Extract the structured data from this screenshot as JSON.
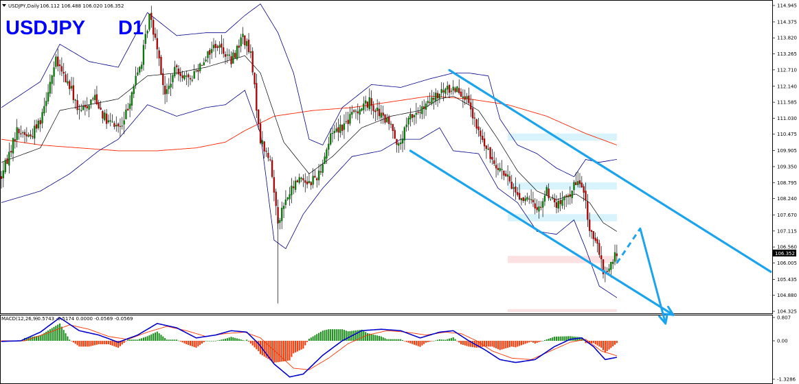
{
  "header": {
    "symbol_line": "USDJPY,Daily",
    "ohlc": "106.112 106.488 106.020 106.352",
    "title_symbol": "USDJPY",
    "title_tf": "D1"
  },
  "macd_header": {
    "label": "MACD(12,26,9)",
    "values": "-0.5743 -0.5174 0.0000 -0.0569 -0.0569"
  },
  "current_price": "106.352",
  "colors": {
    "title": "#0000ff",
    "candle_up": "#008000",
    "candle_down": "#c00000",
    "bollinger": "#00008b",
    "sma_mid": "#000000",
    "ma200": "#ff2200",
    "channel": "#1aa3ef",
    "zone_resistance": "#d8f3fc",
    "zone_support": "#fbe1e1",
    "macd_hist_pos": "#1a8c1a",
    "macd_hist_neg": "#ff3300",
    "macd_line": "#0000cc",
    "signal_line": "#ff3300"
  },
  "chart_data": [
    {
      "type": "candlestick",
      "title": "",
      "x_unit": "daily bars (oldest to newest)",
      "ylim": [
        104.325,
        114.945
      ],
      "yticks": [
        "114.945",
        "114.375",
        "113.820",
        "113.265",
        "112.710",
        "112.140",
        "111.585",
        "111.030",
        "110.475",
        "109.905",
        "109.350",
        "108.795",
        "108.240",
        "107.670",
        "107.115",
        "106.560",
        "106.005",
        "105.435",
        "104.880",
        "104.325"
      ],
      "anchors": [
        [
          0,
          109.0
        ],
        [
          8,
          110.6
        ],
        [
          15,
          110.4
        ],
        [
          20,
          111.0
        ],
        [
          25,
          112.3
        ],
        [
          28,
          113.0
        ],
        [
          36,
          112.0
        ],
        [
          40,
          111.2
        ],
        [
          48,
          111.8
        ],
        [
          54,
          110.9
        ],
        [
          62,
          110.7
        ],
        [
          68,
          112.2
        ],
        [
          72,
          113.0
        ],
        [
          76,
          114.6
        ],
        [
          80,
          113.6
        ],
        [
          84,
          111.8
        ],
        [
          90,
          112.8
        ],
        [
          96,
          112.3
        ],
        [
          104,
          113.1
        ],
        [
          110,
          113.6
        ],
        [
          114,
          113.4
        ],
        [
          118,
          113.0
        ],
        [
          124,
          113.9
        ],
        [
          128,
          113.2
        ],
        [
          133,
          110.3
        ],
        [
          138,
          109.5
        ],
        [
          142,
          107.5
        ],
        [
          147,
          108.3
        ],
        [
          153,
          109.0
        ],
        [
          158,
          108.8
        ],
        [
          163,
          109.1
        ],
        [
          170,
          110.6
        ],
        [
          176,
          110.8
        ],
        [
          182,
          111.3
        ],
        [
          189,
          111.6
        ],
        [
          195,
          111.1
        ],
        [
          201,
          110.7
        ],
        [
          204,
          110.0
        ],
        [
          210,
          111.1
        ],
        [
          216,
          111.3
        ],
        [
          222,
          111.7
        ],
        [
          228,
          112.0
        ],
        [
          234,
          112.1
        ],
        [
          238,
          111.8
        ],
        [
          244,
          110.7
        ],
        [
          250,
          109.8
        ],
        [
          256,
          109.3
        ],
        [
          262,
          108.7
        ],
        [
          266,
          108.3
        ],
        [
          272,
          108.1
        ],
        [
          276,
          107.9
        ],
        [
          280,
          108.5
        ],
        [
          285,
          108.0
        ],
        [
          290,
          108.2
        ],
        [
          294,
          108.7
        ],
        [
          298,
          108.8
        ],
        [
          302,
          107.2
        ],
        [
          305,
          106.8
        ],
        [
          309,
          105.7
        ],
        [
          312,
          105.8
        ],
        [
          316,
          106.352
        ]
      ],
      "bollinger_upper_anchors": [
        [
          0,
          111.4
        ],
        [
          20,
          112.3
        ],
        [
          30,
          113.6
        ],
        [
          45,
          113.0
        ],
        [
          60,
          112.8
        ],
        [
          75,
          114.7
        ],
        [
          90,
          113.9
        ],
        [
          105,
          114.0
        ],
        [
          115,
          114.0
        ],
        [
          125,
          114.6
        ],
        [
          133,
          115.0
        ],
        [
          142,
          114.0
        ],
        [
          150,
          112.6
        ],
        [
          158,
          110.3
        ],
        [
          165,
          110.1
        ],
        [
          175,
          111.4
        ],
        [
          190,
          112.2
        ],
        [
          205,
          112.1
        ],
        [
          220,
          112.4
        ],
        [
          232,
          112.6
        ],
        [
          240,
          112.6
        ],
        [
          250,
          112.5
        ],
        [
          256,
          111.0
        ],
        [
          265,
          110.1
        ],
        [
          275,
          109.8
        ],
        [
          285,
          109.3
        ],
        [
          294,
          109.0
        ],
        [
          300,
          109.6
        ],
        [
          307,
          109.5
        ],
        [
          316,
          109.6
        ]
      ],
      "bollinger_lower_anchors": [
        [
          0,
          108.1
        ],
        [
          20,
          108.5
        ],
        [
          35,
          109.1
        ],
        [
          50,
          109.9
        ],
        [
          60,
          110.3
        ],
        [
          75,
          111.5
        ],
        [
          90,
          111.1
        ],
        [
          105,
          111.4
        ],
        [
          115,
          111.5
        ],
        [
          125,
          112.0
        ],
        [
          133,
          110.5
        ],
        [
          140,
          106.8
        ],
        [
          146,
          106.5
        ],
        [
          155,
          107.7
        ],
        [
          165,
          108.6
        ],
        [
          180,
          109.7
        ],
        [
          195,
          109.9
        ],
        [
          205,
          110.3
        ],
        [
          215,
          110.3
        ],
        [
          225,
          110.7
        ],
        [
          232,
          109.9
        ],
        [
          245,
          109.8
        ],
        [
          255,
          108.6
        ],
        [
          265,
          108.1
        ],
        [
          275,
          107.1
        ],
        [
          285,
          107.0
        ],
        [
          294,
          107.5
        ],
        [
          300,
          106.5
        ],
        [
          307,
          105.2
        ],
        [
          316,
          104.8
        ]
      ],
      "sma20_anchors": [
        [
          0,
          109.5
        ],
        [
          20,
          110.0
        ],
        [
          30,
          111.3
        ],
        [
          45,
          111.5
        ],
        [
          60,
          111.7
        ],
        [
          75,
          112.5
        ],
        [
          90,
          112.6
        ],
        [
          105,
          112.8
        ],
        [
          115,
          113.0
        ],
        [
          125,
          113.2
        ],
        [
          133,
          112.6
        ],
        [
          145,
          110.2
        ],
        [
          158,
          109.1
        ],
        [
          170,
          109.7
        ],
        [
          185,
          110.7
        ],
        [
          200,
          111.1
        ],
        [
          215,
          111.3
        ],
        [
          225,
          111.7
        ],
        [
          232,
          111.8
        ],
        [
          245,
          111.3
        ],
        [
          255,
          110.3
        ],
        [
          265,
          109.2
        ],
        [
          275,
          108.5
        ],
        [
          285,
          108.2
        ],
        [
          295,
          108.4
        ],
        [
          302,
          108.1
        ],
        [
          309,
          107.4
        ],
        [
          316,
          107.1
        ]
      ],
      "ma200_anchors": [
        [
          0,
          110.3
        ],
        [
          20,
          110.1
        ],
        [
          40,
          110.0
        ],
        [
          60,
          109.9
        ],
        [
          80,
          109.9
        ],
        [
          100,
          110.0
        ],
        [
          115,
          110.2
        ],
        [
          125,
          110.6
        ],
        [
          140,
          111.1
        ],
        [
          160,
          111.3
        ],
        [
          180,
          111.4
        ],
        [
          200,
          111.6
        ],
        [
          220,
          111.8
        ],
        [
          240,
          111.7
        ],
        [
          260,
          111.5
        ],
        [
          280,
          111.1
        ],
        [
          300,
          110.5
        ],
        [
          316,
          110.1
        ]
      ],
      "zones": [
        {
          "kind": "resistance",
          "from_bar": 260,
          "to_bar": 316,
          "y_low": 110.25,
          "y_high": 110.5
        },
        {
          "kind": "resistance",
          "from_bar": 260,
          "to_bar": 316,
          "y_low": 108.55,
          "y_high": 108.8
        },
        {
          "kind": "resistance",
          "from_bar": 260,
          "to_bar": 316,
          "y_low": 107.45,
          "y_high": 107.7
        },
        {
          "kind": "support",
          "from_bar": 260,
          "to_bar": 316,
          "y_low": 106.0,
          "y_high": 106.25
        },
        {
          "kind": "support",
          "from_bar": 260,
          "to_bar": 316,
          "y_low": 104.3,
          "y_high": 104.4
        }
      ],
      "annotations": {
        "channel_upper": [
          [
            230,
            112.7
          ],
          [
            395,
            105.7
          ]
        ],
        "channel_lower": [
          [
            210,
            109.9
          ],
          [
            345,
            104.2
          ]
        ],
        "projection": [
          [
            316,
            106.0
          ],
          [
            328,
            107.2
          ],
          [
            341,
            103.9
          ]
        ]
      }
    },
    {
      "type": "line",
      "title": "MACD(12,26,9)",
      "ylim": [
        -1.3286,
        0.807
      ],
      "yticks": [
        "0.807",
        "0.00",
        "-1.3286"
      ],
      "macd_anchors": [
        [
          0,
          -0.02
        ],
        [
          10,
          0.0
        ],
        [
          20,
          0.3
        ],
        [
          30,
          0.8
        ],
        [
          40,
          0.35
        ],
        [
          50,
          0.2
        ],
        [
          60,
          -0.05
        ],
        [
          70,
          0.2
        ],
        [
          80,
          0.6
        ],
        [
          90,
          0.45
        ],
        [
          100,
          0.1
        ],
        [
          110,
          0.2
        ],
        [
          118,
          0.35
        ],
        [
          126,
          0.3
        ],
        [
          132,
          -0.1
        ],
        [
          140,
          -0.8
        ],
        [
          148,
          -1.25
        ],
        [
          155,
          -1.15
        ],
        [
          165,
          -0.5
        ],
        [
          175,
          0.0
        ],
        [
          185,
          0.35
        ],
        [
          195,
          0.4
        ],
        [
          205,
          0.35
        ],
        [
          215,
          0.1
        ],
        [
          225,
          0.3
        ],
        [
          232,
          0.35
        ],
        [
          240,
          0.0
        ],
        [
          248,
          -0.3
        ],
        [
          256,
          -0.65
        ],
        [
          264,
          -0.75
        ],
        [
          274,
          -0.65
        ],
        [
          284,
          -0.2
        ],
        [
          292,
          0.05
        ],
        [
          298,
          0.1
        ],
        [
          304,
          -0.2
        ],
        [
          310,
          -0.65
        ],
        [
          316,
          -0.57
        ]
      ],
      "signal_anchors": [
        [
          0,
          0.0
        ],
        [
          12,
          0.0
        ],
        [
          25,
          0.3
        ],
        [
          35,
          0.55
        ],
        [
          45,
          0.4
        ],
        [
          55,
          0.15
        ],
        [
          65,
          0.05
        ],
        [
          75,
          0.3
        ],
        [
          85,
          0.5
        ],
        [
          95,
          0.35
        ],
        [
          105,
          0.15
        ],
        [
          115,
          0.25
        ],
        [
          125,
          0.3
        ],
        [
          133,
          0.1
        ],
        [
          142,
          -0.45
        ],
        [
          150,
          -0.95
        ],
        [
          158,
          -1.0
        ],
        [
          168,
          -0.6
        ],
        [
          178,
          -0.1
        ],
        [
          188,
          0.2
        ],
        [
          198,
          0.35
        ],
        [
          208,
          0.3
        ],
        [
          218,
          0.2
        ],
        [
          228,
          0.3
        ],
        [
          236,
          0.25
        ],
        [
          244,
          0.0
        ],
        [
          252,
          -0.35
        ],
        [
          262,
          -0.6
        ],
        [
          272,
          -0.65
        ],
        [
          282,
          -0.35
        ],
        [
          292,
          -0.05
        ],
        [
          300,
          0.05
        ],
        [
          308,
          -0.35
        ],
        [
          316,
          -0.52
        ]
      ]
    }
  ]
}
